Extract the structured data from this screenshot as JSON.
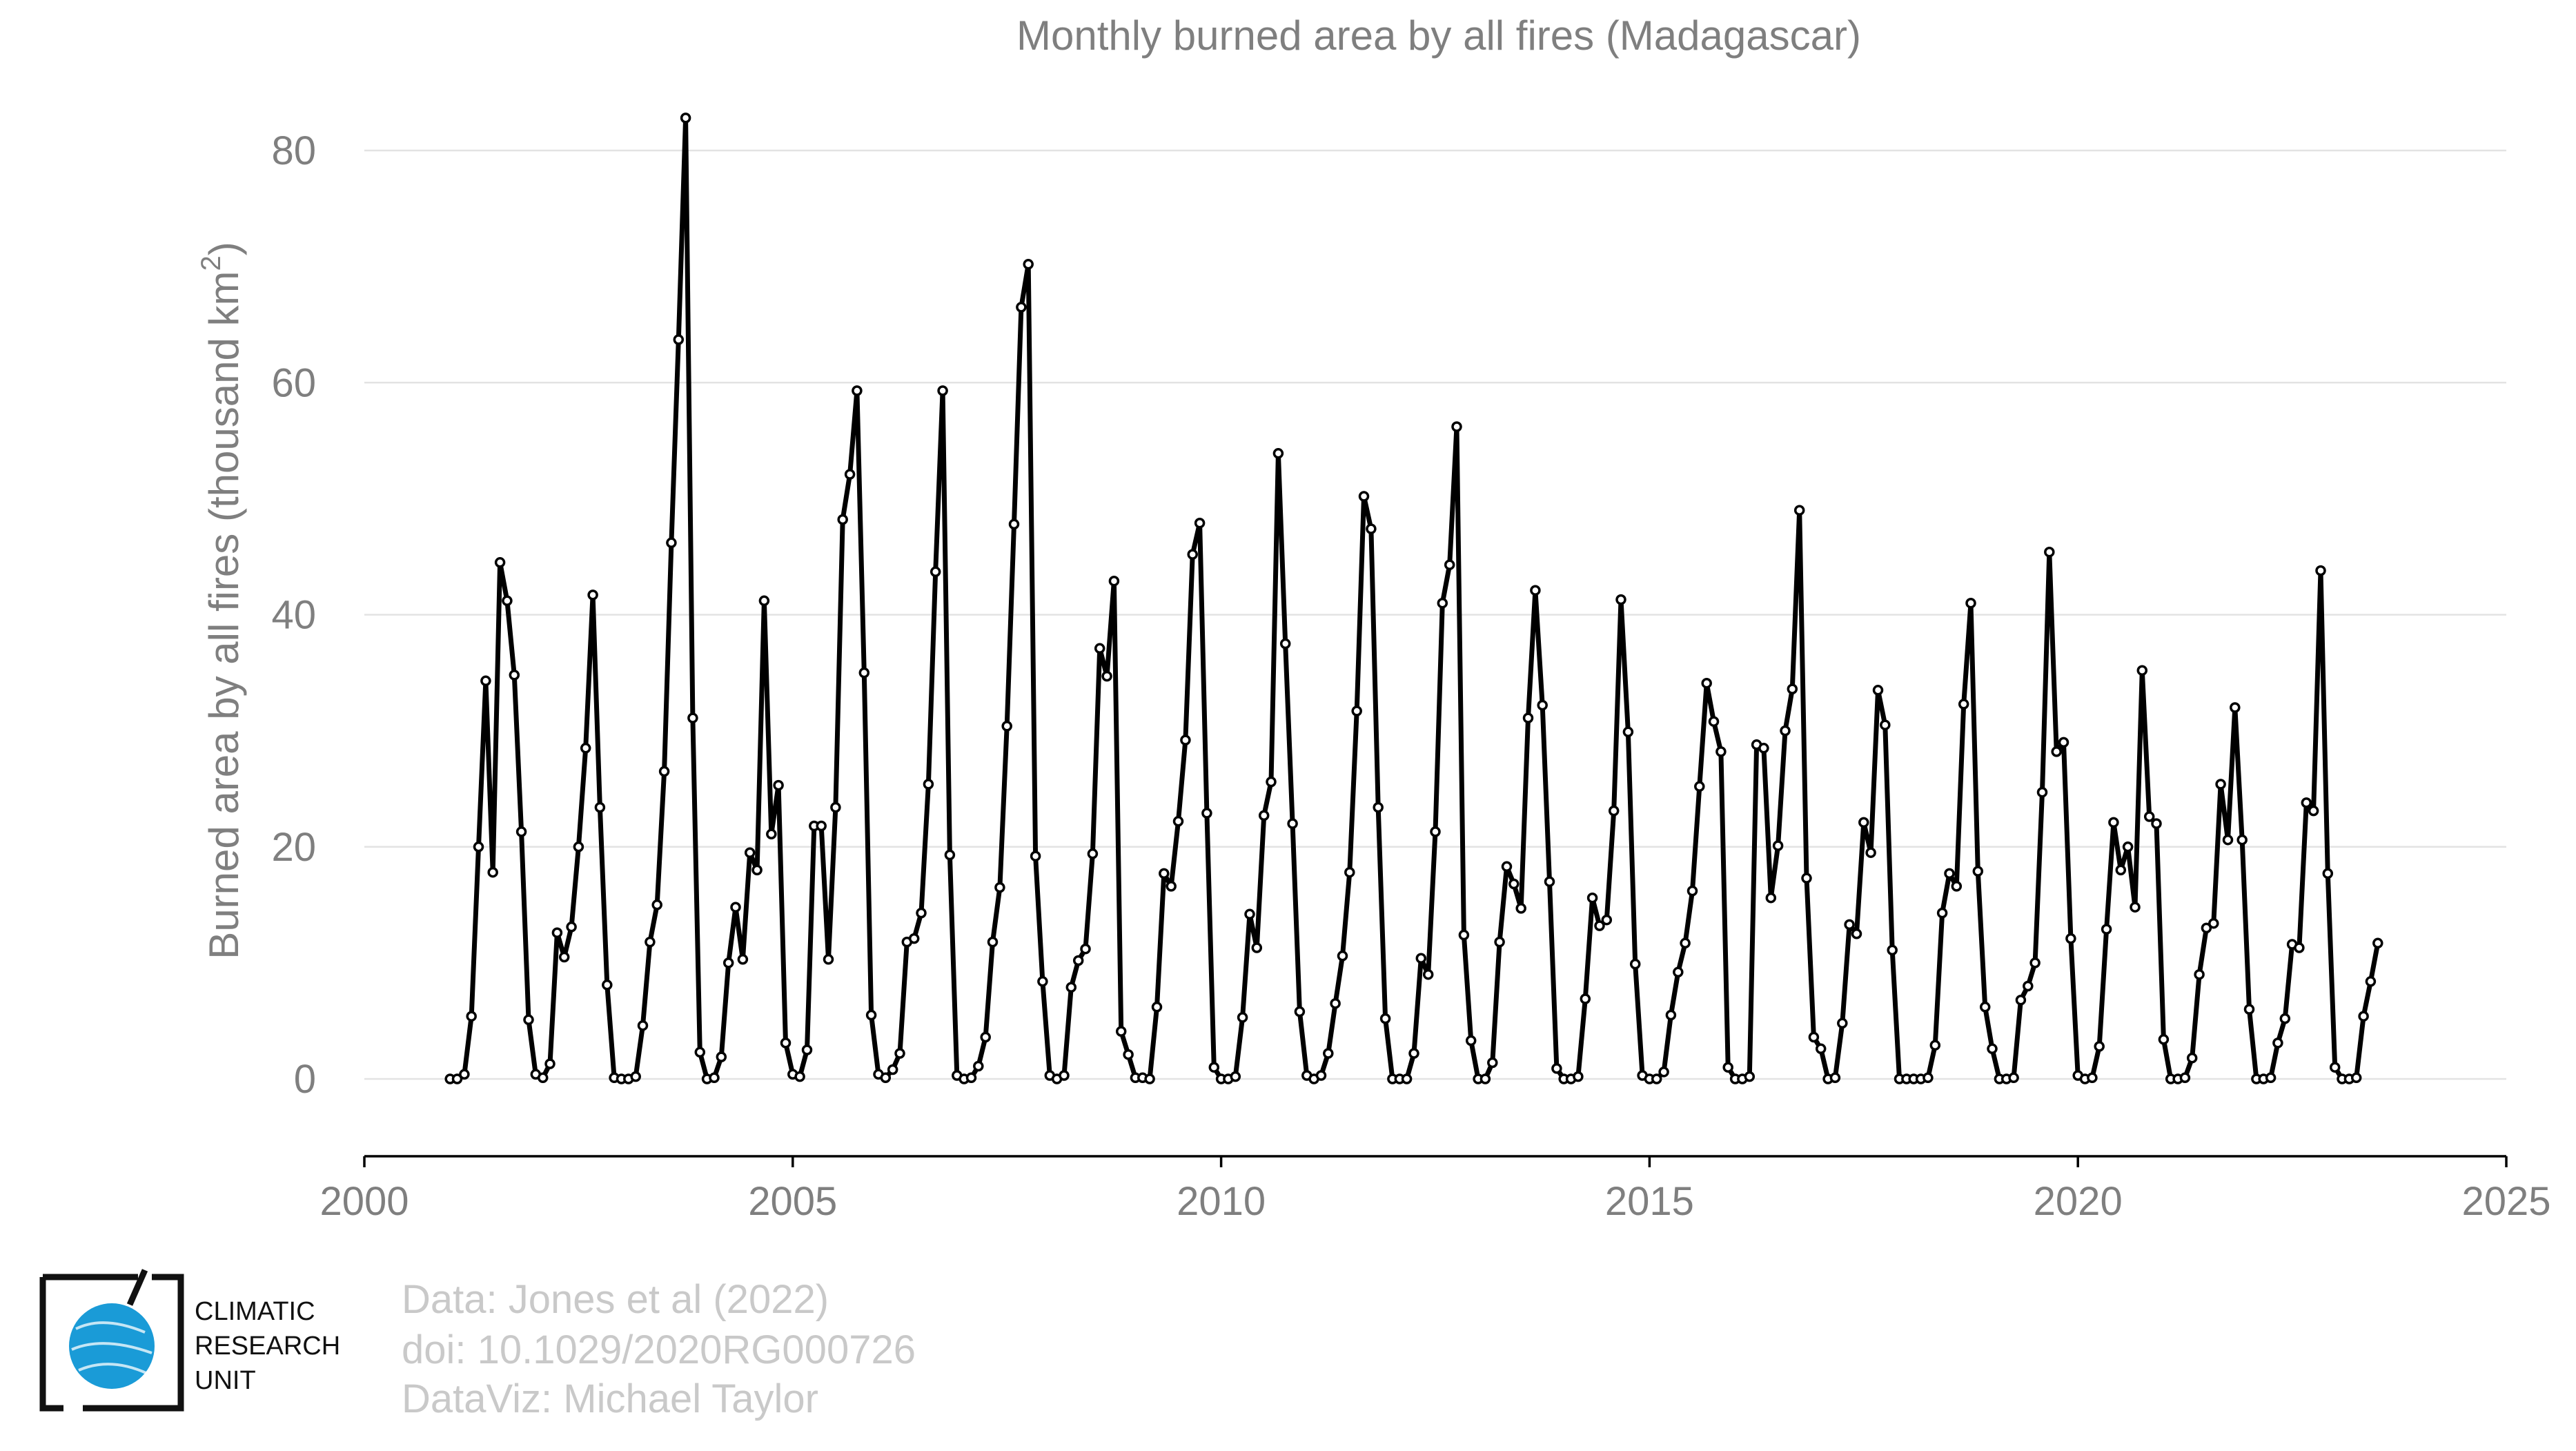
{
  "chart_data": {
    "type": "line",
    "title": "Monthly burned area by all fires (Madagascar)",
    "ylabel": "Burned area by all fires (thousand km",
    "ylabel_sup": "2",
    "ylabel_close": ")",
    "xlabel": "",
    "xlim": [
      2000,
      2025
    ],
    "ylim": [
      -6.5,
      85
    ],
    "xticks": [
      2000,
      2005,
      2010,
      2015,
      2020,
      2025
    ],
    "yticks": [
      0,
      20,
      40,
      60,
      80
    ],
    "grid": true,
    "legend": "none",
    "series": [
      {
        "x_start": 2001.0,
        "x_step_months": 1,
        "values": [
          0.0,
          0.0,
          0.4,
          5.4,
          20.0,
          34.3,
          17.8,
          44.5,
          41.2,
          34.8,
          21.3,
          5.1,
          0.4,
          0.1,
          1.3,
          12.6,
          10.5,
          13.1,
          20.0,
          28.5,
          41.7,
          23.4,
          8.1,
          0.1,
          0.0,
          0.0,
          0.2,
          4.6,
          11.8,
          15.0,
          26.5,
          46.2,
          63.7,
          82.8,
          31.1,
          2.3,
          0.0,
          0.1,
          1.9,
          10.0,
          14.8,
          10.3,
          19.5,
          18.0,
          41.2,
          21.1,
          25.3,
          3.1,
          0.4,
          0.2,
          2.5,
          21.8,
          21.8,
          10.3,
          23.4,
          48.2,
          52.1,
          59.3,
          35.0,
          5.5,
          0.4,
          0.1,
          0.8,
          2.2,
          11.8,
          12.1,
          14.3,
          25.4,
          43.7,
          59.3,
          19.3,
          0.3,
          0.0,
          0.1,
          1.1,
          3.6,
          11.8,
          16.5,
          30.4,
          47.8,
          66.5,
          70.2,
          19.2,
          8.4,
          0.3,
          0.0,
          0.3,
          7.9,
          10.2,
          11.2,
          19.4,
          37.1,
          34.7,
          42.9,
          4.1,
          2.1,
          0.1,
          0.1,
          0.0,
          6.2,
          17.7,
          16.6,
          22.2,
          29.2,
          45.2,
          47.9,
          22.9,
          1.0,
          0.0,
          0.0,
          0.2,
          5.3,
          14.2,
          11.3,
          22.7,
          25.6,
          53.9,
          37.5,
          22.0,
          5.8,
          0.3,
          0.0,
          0.3,
          2.2,
          6.5,
          10.6,
          17.8,
          31.7,
          50.2,
          47.4,
          23.4,
          5.2,
          0.0,
          0.0,
          0.0,
          2.2,
          10.4,
          9.0,
          21.3,
          41.0,
          44.3,
          56.2,
          12.4,
          3.3,
          0.0,
          0.0,
          1.4,
          11.8,
          18.3,
          16.8,
          14.7,
          31.1,
          42.1,
          32.2,
          17.0,
          0.9,
          0.0,
          0.0,
          0.2,
          6.9,
          15.6,
          13.2,
          13.7,
          23.1,
          41.3,
          29.9,
          9.9,
          0.3,
          0.0,
          0.0,
          0.6,
          5.5,
          9.2,
          11.7,
          16.2,
          25.2,
          34.1,
          30.8,
          28.2,
          1.0,
          0.0,
          0.0,
          0.2,
          28.8,
          28.5,
          15.6,
          20.1,
          30.0,
          33.6,
          49.0,
          17.3,
          3.6,
          2.6,
          0.0,
          0.1,
          4.8,
          13.3,
          12.5,
          22.1,
          19.5,
          33.5,
          30.5,
          11.1,
          0.0,
          0.0,
          0.0,
          0.0,
          0.1,
          2.9,
          14.3,
          17.7,
          16.6,
          32.3,
          41.0,
          17.9,
          6.2,
          2.6,
          0.0,
          0.0,
          0.1,
          6.8,
          8.0,
          10.0,
          24.7,
          45.4,
          28.2,
          29.0,
          12.1,
          0.3,
          0.0,
          0.1,
          2.8,
          12.9,
          22.1,
          18.0,
          20.0,
          14.8,
          35.2,
          22.6,
          22.0,
          3.4,
          0.0,
          0.0,
          0.1,
          1.8,
          9.0,
          13.0,
          13.4,
          25.4,
          20.6,
          32.0,
          20.6,
          6.0,
          0.0,
          0.0,
          0.1,
          3.1,
          5.2,
          11.6,
          11.3,
          23.8,
          23.1,
          43.8,
          17.7,
          1.0,
          0.0,
          0.0,
          0.1,
          5.4,
          8.4,
          11.7
        ]
      }
    ]
  },
  "credits": {
    "line1": "Data: Jones et al (2022)",
    "line2": "doi: 10.1029/2020RG000726",
    "line3": "DataViz: Michael Taylor"
  },
  "logo": {
    "line1": "CLIMATIC",
    "line2": "RESEARCH",
    "line3": "UNIT",
    "accent": "#1a9bd7"
  }
}
